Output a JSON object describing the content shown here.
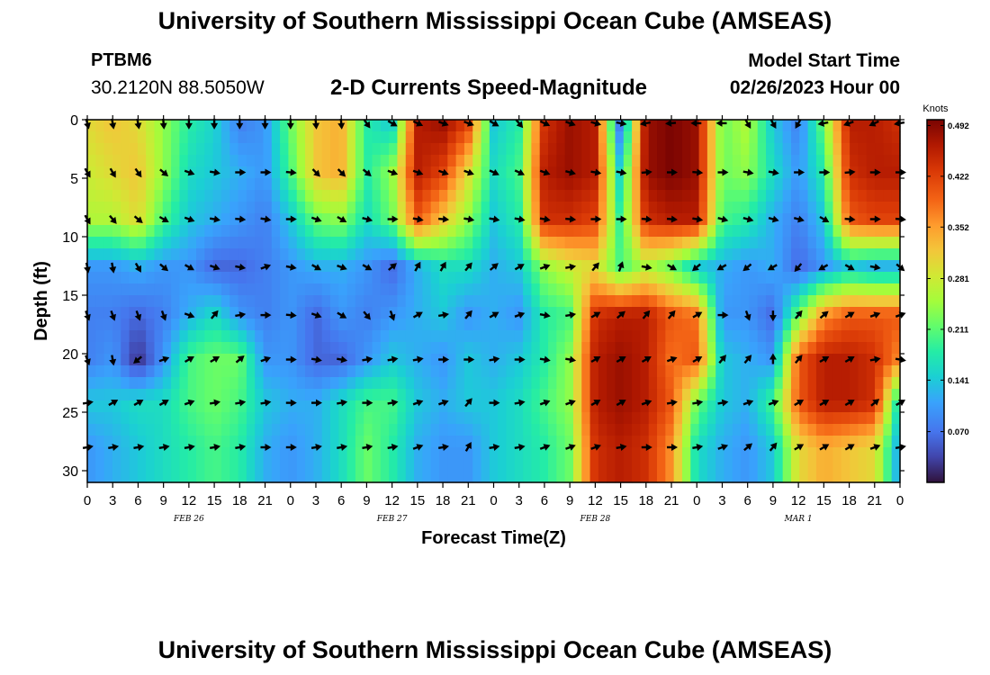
{
  "header": {
    "title": "University of Southern Mississippi Ocean Cube (AMSEAS)",
    "station_id": "PTBM6",
    "coordinates": "30.2120N  88.5050W",
    "subtitle": "2-D Currents Speed-Magnitude",
    "model_start_label": "Model Start Time",
    "model_start_value": "02/26/2023 Hour 00"
  },
  "footer": {
    "title": "University of Southern Mississippi Ocean Cube (AMSEAS)"
  },
  "chart_data": {
    "type": "heatmap",
    "title": "2-D Currents Speed-Magnitude",
    "xlabel": "Forecast Time(Z)",
    "ylabel": "Depth (ft)",
    "xlim": [
      0,
      96
    ],
    "ylim": [
      0,
      31
    ],
    "y_inverted": true,
    "x_tick_labels": [
      "0",
      "3",
      "6",
      "9",
      "12",
      "15",
      "18",
      "21",
      "0",
      "3",
      "6",
      "9",
      "12",
      "15",
      "18",
      "21",
      "0",
      "3",
      "6",
      "9",
      "12",
      "15",
      "18",
      "21",
      "0",
      "3",
      "6",
      "9",
      "12",
      "15",
      "18",
      "21",
      "0"
    ],
    "x_tick_hours": [
      0,
      3,
      6,
      9,
      12,
      15,
      18,
      21,
      24,
      27,
      30,
      33,
      36,
      39,
      42,
      45,
      48,
      51,
      54,
      57,
      60,
      63,
      66,
      69,
      72,
      75,
      78,
      81,
      84,
      87,
      90,
      93,
      96
    ],
    "y_ticks": [
      0,
      5,
      10,
      15,
      20,
      25,
      30
    ],
    "date_labels": [
      {
        "label": "FEB 26",
        "hour": 12
      },
      {
        "label": "FEB 27",
        "hour": 36
      },
      {
        "label": "FEB 28",
        "hour": 60
      },
      {
        "label": "MAR 1",
        "hour": 84
      }
    ],
    "colorbar": {
      "unit": "Knots",
      "tick_labels": [
        "0.492",
        "0.422",
        "0.352",
        "0.281",
        "0.211",
        "0.141",
        "0.070"
      ],
      "tick_values": [
        0.492,
        0.422,
        0.352,
        0.281,
        0.211,
        0.141,
        0.07
      ],
      "range": [
        0.0,
        0.5
      ]
    },
    "depth_levels": [
      0.3,
      4.5,
      8.5,
      12.6,
      16.7,
      20.5,
      24.2,
      28.0
    ],
    "speed_hours": [
      0,
      3,
      6,
      9,
      12,
      15,
      18,
      21,
      24,
      27,
      30,
      33,
      36,
      39,
      42,
      45,
      48,
      51,
      54,
      57,
      60,
      63,
      66,
      69,
      72,
      75,
      78,
      81,
      84,
      87,
      90,
      93,
      96
    ],
    "speed": [
      [
        0.3,
        0.32,
        0.3,
        0.24,
        0.18,
        0.15,
        0.08,
        0.1,
        0.22,
        0.32,
        0.34,
        0.18,
        0.14,
        0.46,
        0.48,
        0.42,
        0.14,
        0.18,
        0.44,
        0.48,
        0.46,
        0.06,
        0.48,
        0.5,
        0.48,
        0.22,
        0.26,
        0.14,
        0.08,
        0.22,
        0.46,
        0.46,
        0.44
      ],
      [
        0.28,
        0.3,
        0.32,
        0.24,
        0.16,
        0.14,
        0.12,
        0.1,
        0.2,
        0.32,
        0.34,
        0.18,
        0.24,
        0.46,
        0.42,
        0.3,
        0.16,
        0.2,
        0.46,
        0.48,
        0.46,
        0.14,
        0.48,
        0.5,
        0.48,
        0.22,
        0.24,
        0.16,
        0.1,
        0.18,
        0.44,
        0.46,
        0.46
      ],
      [
        0.26,
        0.26,
        0.3,
        0.2,
        0.14,
        0.12,
        0.1,
        0.08,
        0.14,
        0.22,
        0.24,
        0.16,
        0.22,
        0.4,
        0.32,
        0.24,
        0.14,
        0.18,
        0.44,
        0.44,
        0.42,
        0.18,
        0.44,
        0.46,
        0.46,
        0.2,
        0.18,
        0.12,
        0.08,
        0.14,
        0.4,
        0.42,
        0.42
      ],
      [
        0.1,
        0.1,
        0.12,
        0.1,
        0.1,
        0.06,
        0.06,
        0.08,
        0.1,
        0.12,
        0.12,
        0.1,
        0.06,
        0.12,
        0.16,
        0.16,
        0.12,
        0.14,
        0.24,
        0.28,
        0.3,
        0.2,
        0.26,
        0.22,
        0.14,
        0.12,
        0.1,
        0.12,
        0.06,
        0.1,
        0.14,
        0.12,
        0.12
      ],
      [
        0.08,
        0.08,
        0.06,
        0.08,
        0.12,
        0.16,
        0.1,
        0.08,
        0.1,
        0.06,
        0.1,
        0.08,
        0.1,
        0.12,
        0.14,
        0.1,
        0.12,
        0.1,
        0.18,
        0.2,
        0.44,
        0.46,
        0.46,
        0.4,
        0.38,
        0.1,
        0.1,
        0.06,
        0.22,
        0.36,
        0.4,
        0.4,
        0.4
      ],
      [
        0.08,
        0.1,
        0.02,
        0.1,
        0.2,
        0.22,
        0.22,
        0.1,
        0.1,
        0.06,
        0.06,
        0.1,
        0.14,
        0.12,
        0.1,
        0.14,
        0.12,
        0.14,
        0.18,
        0.24,
        0.46,
        0.48,
        0.46,
        0.38,
        0.4,
        0.14,
        0.12,
        0.1,
        0.4,
        0.46,
        0.46,
        0.44,
        0.36
      ],
      [
        0.14,
        0.14,
        0.16,
        0.16,
        0.2,
        0.22,
        0.2,
        0.14,
        0.12,
        0.12,
        0.16,
        0.2,
        0.2,
        0.14,
        0.12,
        0.14,
        0.14,
        0.16,
        0.2,
        0.24,
        0.46,
        0.48,
        0.46,
        0.4,
        0.22,
        0.14,
        0.12,
        0.2,
        0.4,
        0.46,
        0.46,
        0.44,
        0.14
      ],
      [
        0.1,
        0.12,
        0.14,
        0.16,
        0.18,
        0.2,
        0.18,
        0.12,
        0.1,
        0.12,
        0.16,
        0.22,
        0.18,
        0.12,
        0.1,
        0.1,
        0.14,
        0.16,
        0.18,
        0.22,
        0.44,
        0.46,
        0.44,
        0.36,
        0.16,
        0.12,
        0.1,
        0.14,
        0.3,
        0.34,
        0.32,
        0.3,
        0.1
      ]
    ],
    "arrow_hours": [
      0,
      3,
      6,
      9,
      12,
      15,
      18,
      21,
      24,
      27,
      30,
      33,
      36,
      39,
      42,
      45,
      48,
      51,
      54,
      57,
      60,
      63,
      66,
      69,
      72,
      75,
      78,
      81,
      84,
      87,
      90,
      93,
      96
    ],
    "arrow_depths": [
      0.3,
      4.5,
      8.5,
      12.6,
      16.7,
      20.5,
      24.2,
      28.0
    ],
    "arrow_direction_deg": [
      [
        165,
        170,
        170,
        175,
        180,
        180,
        180,
        180,
        180,
        175,
        175,
        145,
        120,
        115,
        110,
        110,
        120,
        140,
        115,
        110,
        105,
        100,
        260,
        265,
        270,
        270,
        150,
        150,
        210,
        260,
        250,
        245,
        260
      ],
      [
        150,
        150,
        145,
        130,
        110,
        100,
        90,
        90,
        95,
        135,
        135,
        130,
        110,
        110,
        110,
        110,
        115,
        115,
        110,
        105,
        100,
        100,
        85,
        90,
        95,
        90,
        100,
        100,
        90,
        90,
        85,
        90,
        90
      ],
      [
        150,
        140,
        130,
        120,
        110,
        100,
        95,
        100,
        90,
        110,
        120,
        105,
        90,
        100,
        95,
        100,
        100,
        100,
        100,
        95,
        90,
        90,
        95,
        95,
        100,
        105,
        105,
        105,
        105,
        120,
        95,
        90,
        95
      ],
      [
        170,
        170,
        150,
        130,
        120,
        110,
        100,
        70,
        100,
        120,
        110,
        120,
        50,
        30,
        30,
        40,
        50,
        60,
        70,
        80,
        40,
        20,
        100,
        120,
        230,
        240,
        230,
        240,
        220,
        240,
        120,
        100,
        130
      ],
      [
        160,
        160,
        160,
        160,
        110,
        40,
        80,
        90,
        95,
        110,
        120,
        140,
        160,
        60,
        80,
        40,
        60,
        70,
        100,
        80,
        60,
        50,
        40,
        40,
        60,
        90,
        160,
        180,
        40,
        50,
        60,
        70,
        70
      ],
      [
        160,
        170,
        230,
        70,
        60,
        60,
        50,
        70,
        90,
        100,
        100,
        80,
        80,
        80,
        90,
        90,
        80,
        90,
        100,
        100,
        60,
        60,
        60,
        70,
        60,
        40,
        40,
        0,
        40,
        60,
        60,
        80,
        100
      ],
      [
        80,
        60,
        60,
        60,
        70,
        80,
        80,
        80,
        90,
        90,
        80,
        90,
        80,
        70,
        70,
        40,
        90,
        80,
        70,
        70,
        60,
        60,
        70,
        80,
        80,
        80,
        70,
        70,
        60,
        60,
        60,
        50,
        60
      ],
      [
        80,
        80,
        80,
        80,
        80,
        80,
        80,
        90,
        90,
        80,
        80,
        80,
        80,
        70,
        80,
        30,
        80,
        80,
        70,
        70,
        70,
        80,
        90,
        90,
        80,
        70,
        50,
        40,
        60,
        60,
        60,
        70,
        80
      ]
    ]
  }
}
